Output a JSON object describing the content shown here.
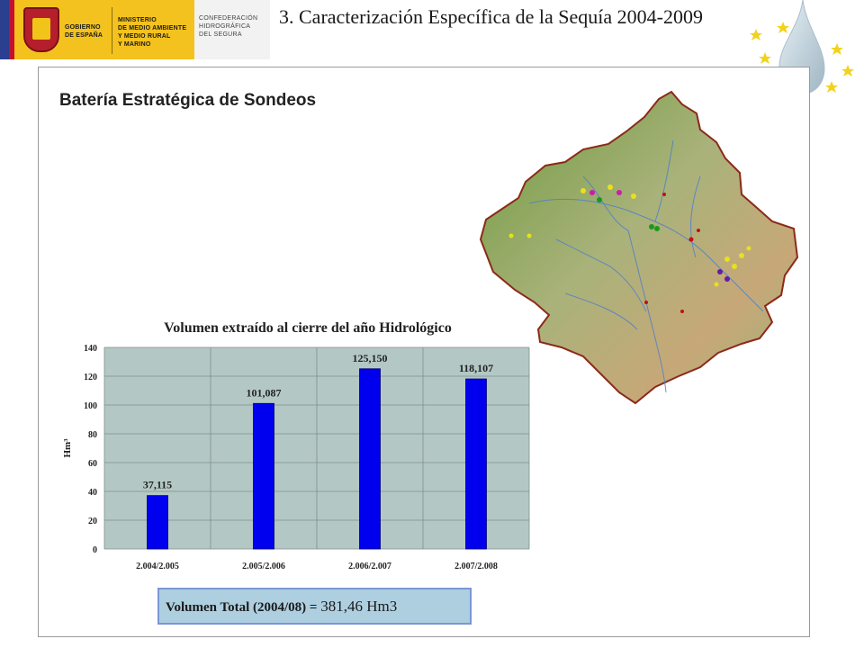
{
  "header": {
    "logo": {
      "line1": [
        "GOBIERNO",
        "DE ESPAÑA"
      ],
      "line2": [
        "MINISTERIO",
        "DE MEDIO AMBIENTE",
        "Y MEDIO RURAL",
        "Y MARINO"
      ],
      "chs": [
        "CONFEDERACIÓN",
        "HIDROGRÁFICA",
        "DEL SEGURA"
      ]
    },
    "title": "3. Caracterización Específica de la Sequía 2004-2009"
  },
  "section": {
    "title": "Batería Estratégica de Sondeos"
  },
  "chart_data": {
    "type": "bar",
    "title": "Volumen extraído al cierre del año Hidrológico",
    "ylabel": "Hm³",
    "xlabel": "",
    "categories": [
      "2.004/2.005",
      "2.005/2.006",
      "2.006/2.007",
      "2.007/2.008"
    ],
    "values": [
      37.115,
      101.087,
      125.15,
      118.107
    ],
    "value_labels": [
      "37,115",
      "101,087",
      "125,150",
      "118,107"
    ],
    "ylim": [
      0,
      140
    ],
    "yticks": [
      0,
      20,
      40,
      60,
      80,
      100,
      120,
      140
    ],
    "grid": true,
    "bar_color": "#0000ee",
    "plot_bg": "#b3c8c4"
  },
  "total": {
    "label": "Volumen Total (2004/08) = ",
    "value": "381,46 Hm3"
  },
  "colors": {
    "logo_yellow": "#f4c21e",
    "map_land": "#8fae5a",
    "map_border": "#8b2a1a",
    "total_box": "#aecfe0"
  }
}
